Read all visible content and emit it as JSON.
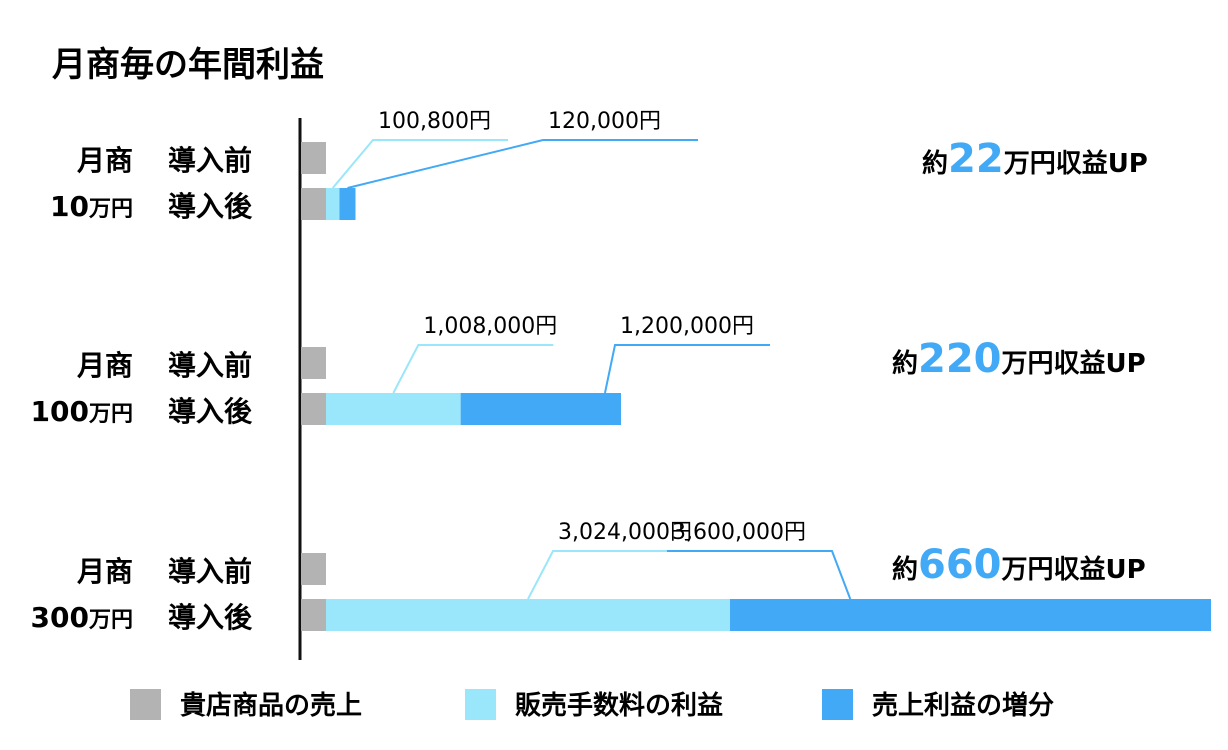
{
  "chart_data": {
    "type": "bar",
    "title": "月商毎の年間利益",
    "colors": {
      "base": "#B3B3B3",
      "commission": "#9AE6FA",
      "increase": "#41A9F5",
      "axis": "#111111",
      "highlight": "#41A9F5"
    },
    "legend": {
      "position": "bottom",
      "items": [
        {
          "key": "base",
          "label": "貴店商品の売上"
        },
        {
          "key": "commission",
          "label": "販売手数料の利益"
        },
        {
          "key": "increase",
          "label": "売上利益の増分"
        }
      ]
    },
    "before_label": "導入前",
    "after_label": "導入後",
    "groups": [
      {
        "label_top": "月商",
        "label_num": "10",
        "label_unit": "万円",
        "base": 10000,
        "commission": 100800,
        "increase": 120000,
        "commission_label": "100,800円",
        "increase_label": "120,000円",
        "up_prefix": "約",
        "up_value": "22",
        "up_suffix": "万円収益UP"
      },
      {
        "label_top": "月商",
        "label_num": "100",
        "label_unit": "万円",
        "base": 10000,
        "commission": 1008000,
        "increase": 1200000,
        "commission_label": "1,008,000円",
        "increase_label": "1,200,000円",
        "up_prefix": "約",
        "up_value": "220",
        "up_suffix": "万円収益UP"
      },
      {
        "label_top": "月商",
        "label_num": "300",
        "label_unit": "万円",
        "base": 10000,
        "commission": 3024000,
        "increase": 3600000,
        "commission_label": "3,024,000円",
        "increase_label": "3,600,000円",
        "up_prefix": "約",
        "up_value": "660",
        "up_suffix": "万円収益UP"
      }
    ]
  }
}
